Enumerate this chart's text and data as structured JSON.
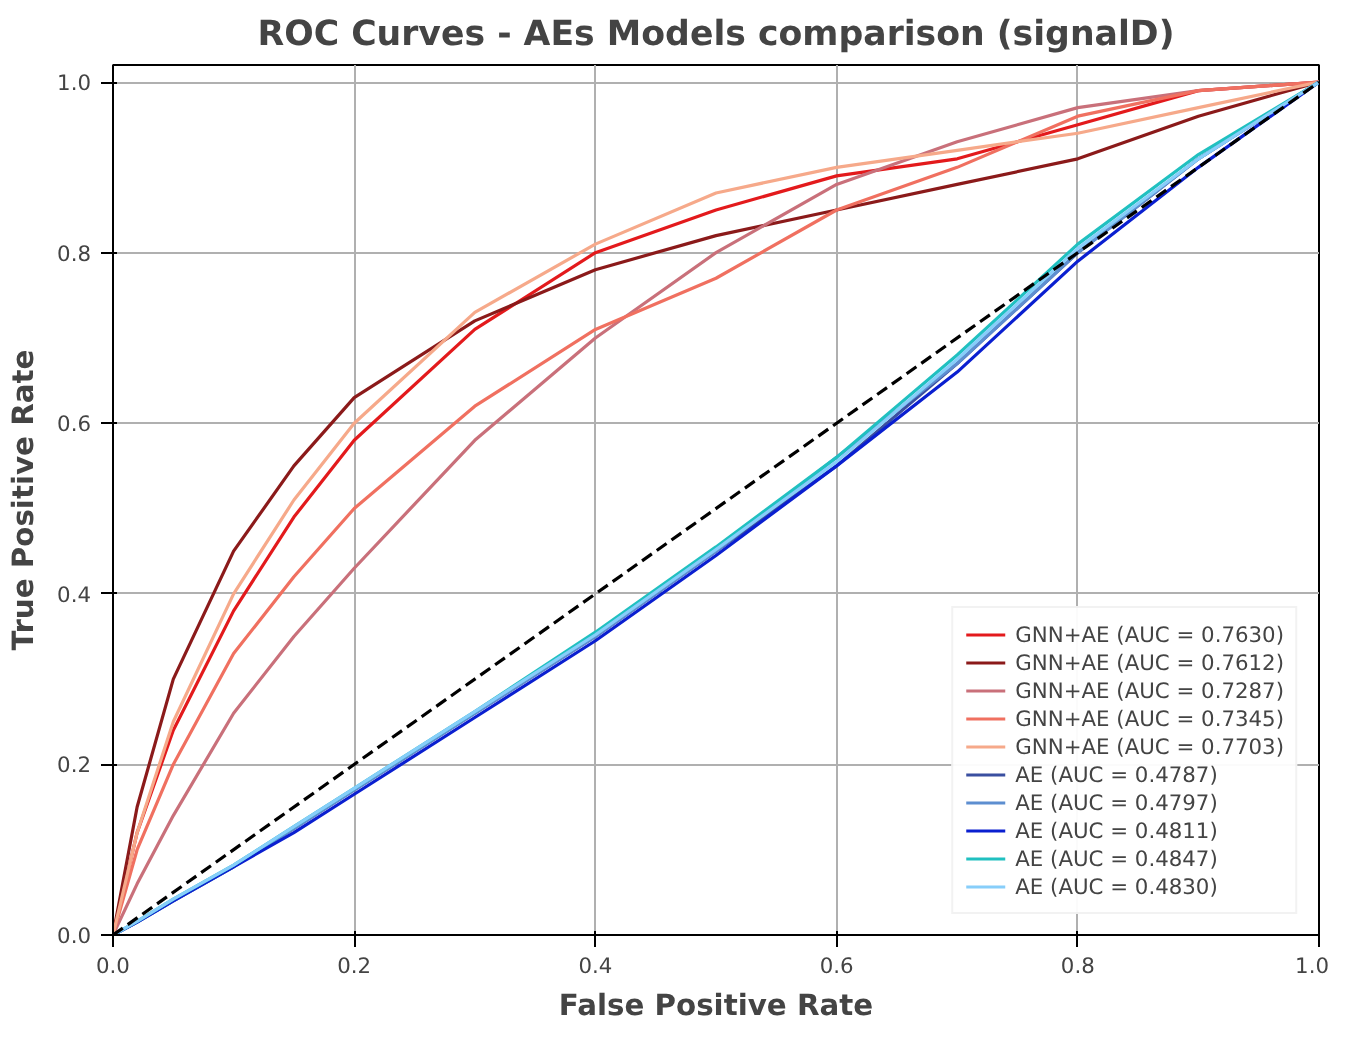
{
  "chart_data": {
    "type": "line",
    "title": "ROC Curves - AEs Models comparison (signalD)",
    "xlabel": "False Positive Rate",
    "ylabel": "True Positive Rate",
    "xlim": [
      0,
      1
    ],
    "ylim": [
      0,
      1.02
    ],
    "xticks": [
      {
        "value": 0,
        "label": "0.0"
      },
      0.2,
      0.4,
      0.6,
      0.8,
      {
        "value": 1,
        "label": "1.0"
      }
    ],
    "yticks": [
      {
        "value": 0,
        "label": "0.0"
      },
      0.2,
      0.4,
      0.6,
      0.8,
      {
        "value": 1,
        "label": "1.0"
      }
    ],
    "grid": true,
    "legend": "bottom right",
    "line_style": "solid",
    "x": [
      0,
      0.02,
      0.05,
      0.1,
      0.15,
      0.2,
      0.3,
      0.4,
      0.5,
      0.6,
      0.7,
      0.8,
      0.9,
      1
    ],
    "series": [
      {
        "name": "GNN+AE (AUC = 0.7630)",
        "color": "#e31a1c",
        "values": [
          0,
          0.12,
          0.24,
          0.38,
          0.49,
          0.58,
          0.71,
          0.8,
          0.85,
          0.89,
          0.91,
          0.95,
          0.99,
          1
        ]
      },
      {
        "name": "GNN+AE (AUC = 0.7612)",
        "color": "#8b1a1a",
        "values": [
          0,
          0.15,
          0.3,
          0.45,
          0.55,
          0.63,
          0.72,
          0.78,
          0.82,
          0.85,
          0.88,
          0.91,
          0.96,
          1
        ]
      },
      {
        "name": "GNN+AE (AUC = 0.7287)",
        "color": "#c9707a",
        "values": [
          0,
          0.06,
          0.14,
          0.26,
          0.35,
          0.43,
          0.58,
          0.7,
          0.8,
          0.88,
          0.93,
          0.97,
          0.99,
          1
        ]
      },
      {
        "name": "GNN+AE (AUC = 0.7345)",
        "color": "#f07060",
        "values": [
          0,
          0.1,
          0.2,
          0.33,
          0.42,
          0.5,
          0.62,
          0.71,
          0.77,
          0.85,
          0.9,
          0.96,
          0.99,
          1
        ]
      },
      {
        "name": "GNN+AE (AUC = 0.7703)",
        "color": "#f6a98a",
        "values": [
          0,
          0.12,
          0.25,
          0.4,
          0.51,
          0.6,
          0.73,
          0.81,
          0.87,
          0.9,
          0.92,
          0.94,
          0.97,
          1
        ]
      },
      {
        "name": "AE (AUC = 0.4787)",
        "color": "#3a4fa0",
        "values": [
          0,
          0.015,
          0.04,
          0.08,
          0.125,
          0.17,
          0.26,
          0.35,
          0.45,
          0.55,
          0.67,
          0.8,
          0.91,
          1
        ]
      },
      {
        "name": "AE (AUC = 0.4797)",
        "color": "#5d8ed0",
        "values": [
          0,
          0.015,
          0.04,
          0.08,
          0.125,
          0.17,
          0.26,
          0.35,
          0.45,
          0.56,
          0.67,
          0.8,
          0.91,
          1
        ]
      },
      {
        "name": "AE (AUC = 0.4811)",
        "color": "#0a1fd0",
        "values": [
          0,
          0.015,
          0.04,
          0.08,
          0.12,
          0.165,
          0.255,
          0.345,
          0.445,
          0.55,
          0.66,
          0.79,
          0.9,
          1
        ]
      },
      {
        "name": "AE (AUC = 0.4847)",
        "color": "#20c0c0",
        "values": [
          0,
          0.016,
          0.042,
          0.082,
          0.127,
          0.172,
          0.262,
          0.355,
          0.455,
          0.56,
          0.68,
          0.81,
          0.915,
          1
        ]
      },
      {
        "name": "AE (AUC = 0.4830)",
        "color": "#87cefa",
        "values": [
          0,
          0.016,
          0.042,
          0.082,
          0.127,
          0.172,
          0.262,
          0.352,
          0.452,
          0.555,
          0.675,
          0.805,
          0.91,
          1
        ]
      },
      {
        "color": "#000000",
        "line_style": "dashed",
        "x": [
          0,
          1
        ],
        "values": [
          0,
          1
        ]
      }
    ]
  }
}
